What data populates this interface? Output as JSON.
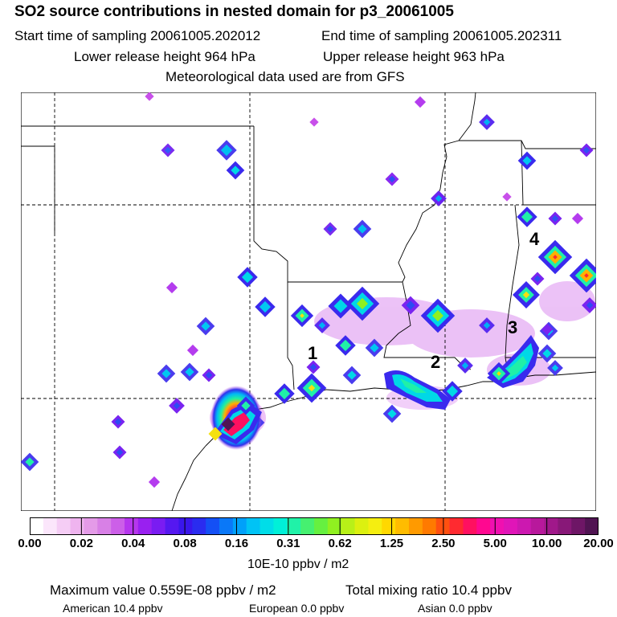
{
  "header": {
    "title": "SO2 source contributions in nested domain for p3_20061005",
    "start_time": "Start time of sampling 20061005.202012",
    "end_time": "End time of sampling 20061005.202311",
    "lower_height": "Lower release height  964 hPa",
    "upper_height": "Upper release height  963 hPa",
    "met_data": "Meteorological data used are from GFS"
  },
  "map": {
    "site_labels": [
      "1",
      "2",
      "3",
      "4"
    ]
  },
  "color_scale": {
    "tick_labels": [
      "0.00",
      "0.02",
      "0.04",
      "0.08",
      "0.16",
      "0.31",
      "0.62",
      "1.25",
      "2.50",
      "5.00",
      "10.00",
      "20.00"
    ],
    "colors": [
      "#ffffff",
      "#fbe6fb",
      "#f5cdf5",
      "#efb4ef",
      "#e49be8",
      "#d880e6",
      "#cc5fe8",
      "#b636ee",
      "#9920f0",
      "#7a1cf2",
      "#5518f0",
      "#3a16ec",
      "#2a2cf0",
      "#1450f5",
      "#0a78f8",
      "#00a0fa",
      "#00c3f5",
      "#00dde8",
      "#00f0d8",
      "#20f2a8",
      "#46f070",
      "#66f040",
      "#90f020",
      "#b8f018",
      "#dcf010",
      "#f5ee10",
      "#ffd800",
      "#ffbc00",
      "#ff9a00",
      "#ff7a00",
      "#ff5010",
      "#ff2a30",
      "#ff1060",
      "#ff0890",
      "#f010b0",
      "#e015b8",
      "#cc18b0",
      "#b8189c",
      "#a0188a",
      "#881878",
      "#6e1666",
      "#501452"
    ],
    "units": "10E-10 ppbv / m2"
  },
  "summary": {
    "max_value": "Maximum value  0.559E-08 ppbv / m2",
    "total_mixing": "Total mixing ratio       10.4 ppbv",
    "american": "American      10.4 ppbv",
    "european": "European         0.0 ppbv",
    "asian": "Asian        0.0 ppbv"
  }
}
